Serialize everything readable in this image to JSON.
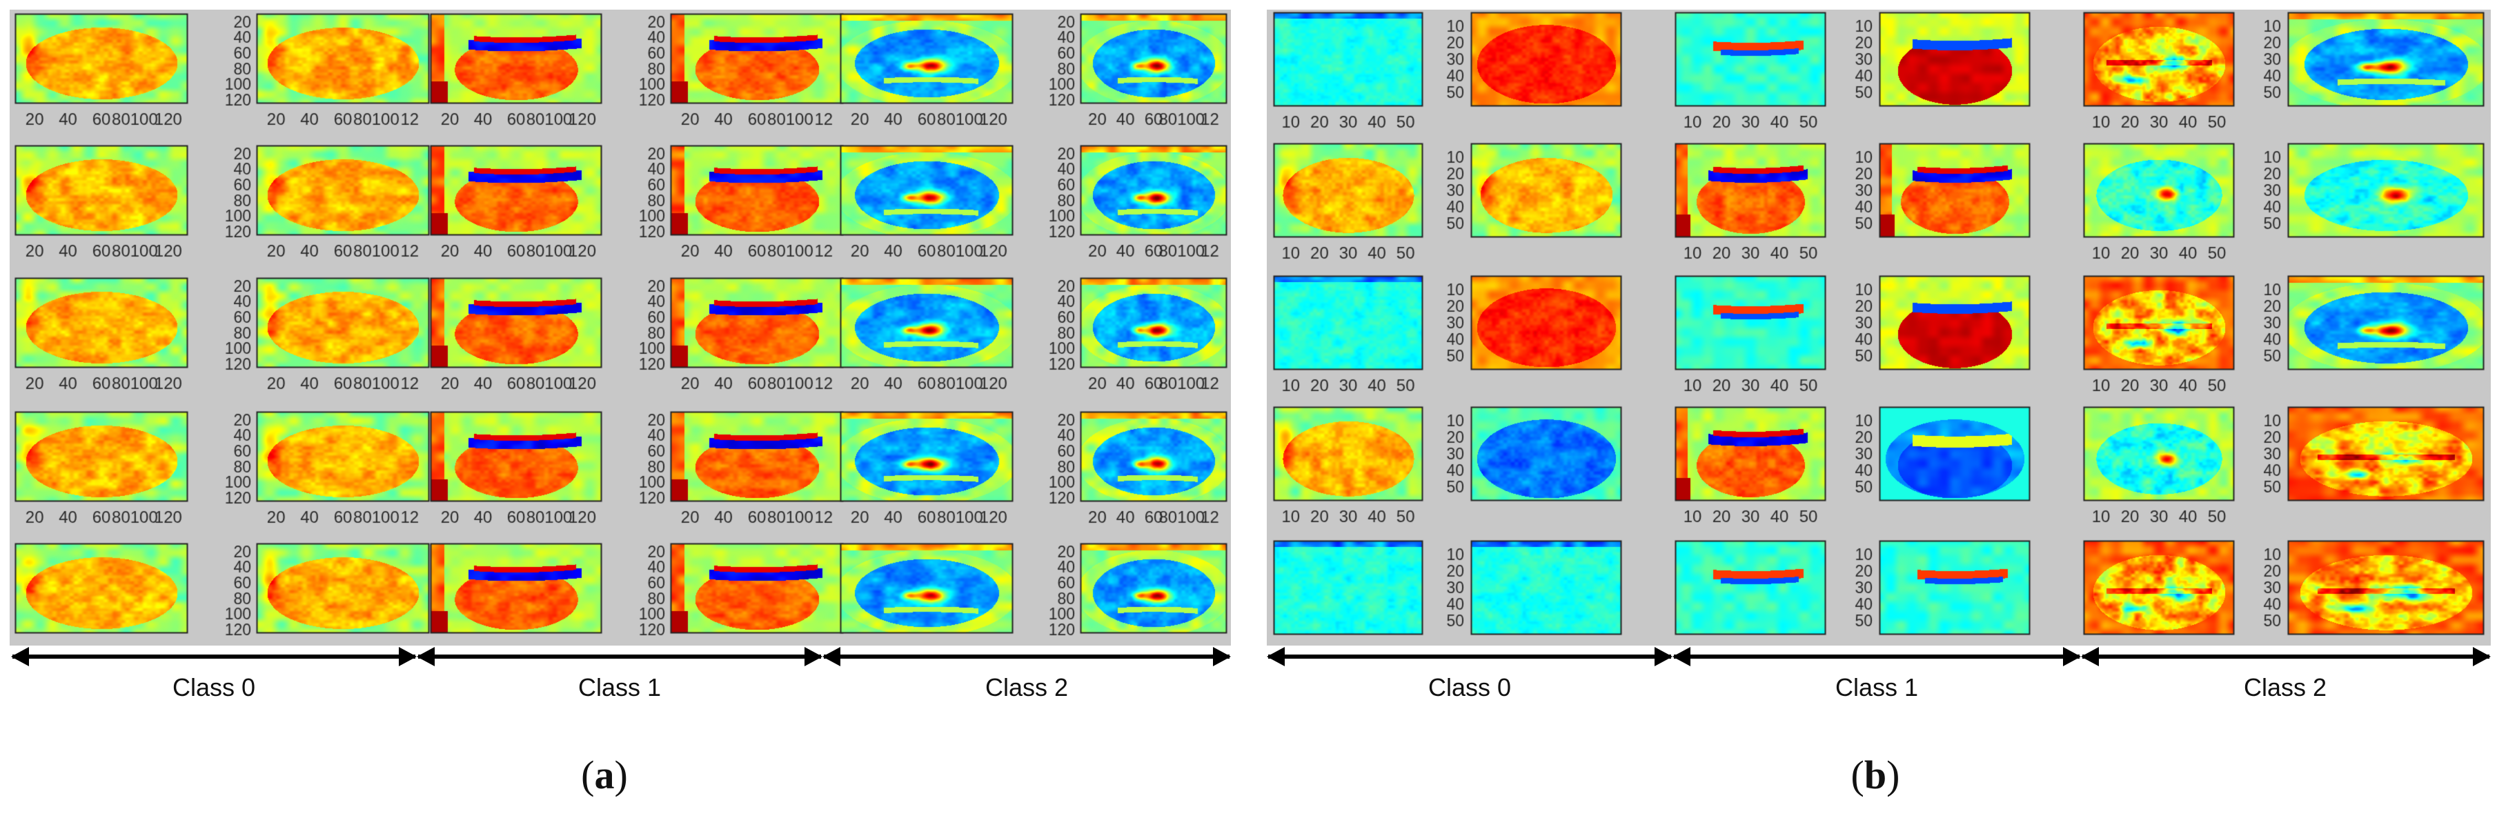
{
  "figure": {
    "panels": [
      {
        "id": "a",
        "label_open": "(",
        "label_letter": "a",
        "label_close": ")",
        "rows": 5,
        "cols": 6,
        "tick_text_vertical": "20 40 60 80 100 120",
        "tick_text_horizontal_full": "20 40 60 80100 120",
        "tick_text_horizontal_cut": "20 40 60 80100 12",
        "classes": [
          "Class 0",
          "Class 1",
          "Class 2"
        ]
      },
      {
        "id": "b",
        "label_open": "(",
        "label_letter": "b",
        "label_close": ")",
        "rows": 5,
        "cols": 6,
        "tick_text_vertical": "10 20 30 40 50",
        "tick_text_horizontal": "10 20 30 40 50",
        "classes": [
          "Class 0",
          "Class 1",
          "Class 2"
        ]
      }
    ],
    "colormap": [
      "#00007f",
      "#0000ff",
      "#007fff",
      "#00ffff",
      "#7fff7f",
      "#ffff00",
      "#ff7f00",
      "#ff0000",
      "#7f0000"
    ],
    "panel_a_maps": [
      [
        "orange-body",
        "orange-body",
        "bowl-orange",
        "bowl-orange",
        "blue-ring",
        "blue-ring"
      ],
      [
        "orange-body",
        "orange-body",
        "bowl-orange",
        "bowl-orange",
        "blue-ring",
        "blue-ring"
      ],
      [
        "orange-body",
        "orange-body",
        "bowl-orange",
        "bowl-orange",
        "blue-ring",
        "blue-ring"
      ],
      [
        "orange-body",
        "orange-body",
        "bowl-orange",
        "bowl-orange",
        "blue-ring",
        "blue-ring"
      ],
      [
        "orange-body",
        "orange-body",
        "bowl-orange",
        "bowl-orange",
        "blue-ring",
        "blue-ring"
      ]
    ],
    "panel_b_maps": [
      [
        "cyan-flat",
        "red-body",
        "cyan-bowl",
        "red-bowl",
        "mixed-ring",
        "blue-ring"
      ],
      [
        "orange-body",
        "orange-body",
        "bowl-orange",
        "bowl-orange",
        "cyan-ring",
        "cyan-ring"
      ],
      [
        "cyan-flat",
        "red-body",
        "cyan-bowl",
        "red-bowl",
        "mixed-ring",
        "blue-ring"
      ],
      [
        "orange-body",
        "blue-flat",
        "bowl-orange",
        "blue-bowl",
        "cyan-ring",
        "mixed-ring"
      ],
      [
        "cyan-flat",
        "cyan-flat",
        "cyan-bowl",
        "cyan-bowl",
        "mixed-ring",
        "mixed-ring"
      ]
    ]
  }
}
